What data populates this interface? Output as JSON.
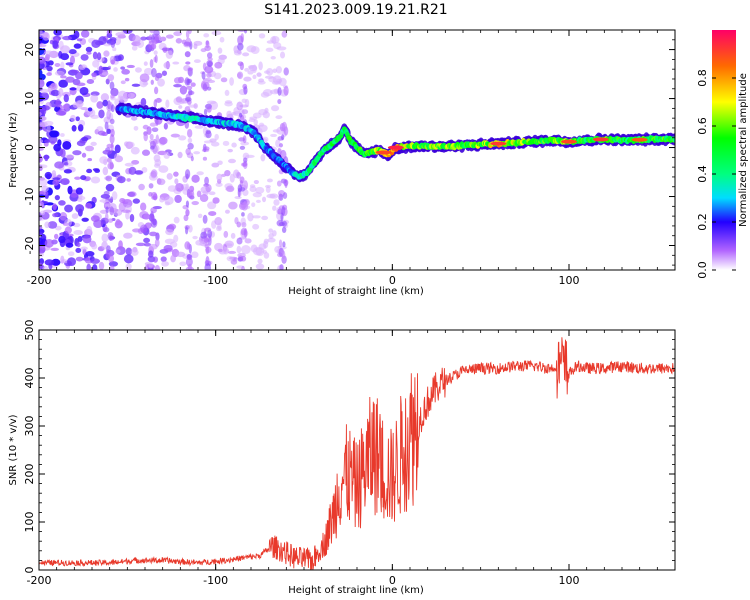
{
  "title": "S141.2023.009.19.21.R21",
  "chart_data": [
    {
      "type": "heatmap",
      "xlabel": "Height of straight line (km)",
      "ylabel": "Frequency (Hz)",
      "xlim": [
        -200,
        160
      ],
      "ylim": [
        -25,
        24
      ],
      "xticks": [
        -200,
        -100,
        0,
        100
      ],
      "xtick_labels": [
        "-200",
        "-100",
        "0",
        "100"
      ],
      "yticks": [
        -20,
        -10,
        0,
        10,
        20
      ],
      "ytick_labels": [
        "-20",
        "-10",
        "0",
        "10",
        "20"
      ],
      "colorbar": {
        "label": "Normalized spectral amplitude",
        "range": [
          0,
          1
        ],
        "ticks": [
          0,
          0.2,
          0.4,
          0.6,
          0.8
        ],
        "tick_labels": [
          "0.0",
          "0.2",
          "0.4",
          "0.6",
          "0.8"
        ]
      },
      "ridge": {
        "x": [
          -155,
          -145,
          -135,
          -125,
          -115,
          -105,
          -95,
          -85,
          -78,
          -72,
          -66,
          -60,
          -56,
          -52,
          -48,
          -44,
          -40,
          -35,
          -30,
          -27,
          -24,
          -20,
          -16,
          -12,
          -8,
          -5,
          -2,
          2,
          10,
          20,
          30,
          40,
          50,
          60,
          70,
          80,
          90,
          100,
          110,
          120,
          130,
          140,
          150,
          160
        ],
        "freq": [
          8,
          7.5,
          7,
          6.5,
          6,
          5.5,
          5,
          4.5,
          3,
          0,
          -2,
          -4,
          -5.5,
          -6,
          -5,
          -3,
          -1,
          0.5,
          2,
          4,
          1.5,
          0,
          -1.5,
          -1,
          -0.5,
          -1,
          -1.5,
          0,
          0.2,
          0.3,
          0.2,
          0.4,
          0.6,
          0.8,
          1,
          1.2,
          1.5,
          1.2,
          1.5,
          1.7,
          1.5,
          1.6,
          1.7,
          1.8
        ],
        "amp": [
          0.25,
          0.3,
          0.28,
          0.3,
          0.35,
          0.32,
          0.3,
          0.3,
          0.3,
          0.28,
          0.25,
          0.25,
          0.3,
          0.35,
          0.4,
          0.45,
          0.45,
          0.5,
          0.5,
          0.45,
          0.55,
          0.5,
          0.5,
          0.55,
          0.6,
          0.7,
          0.8,
          0.95,
          0.6,
          0.55,
          0.6,
          0.55,
          0.6,
          0.7,
          0.65,
          0.5,
          0.55,
          0.6,
          0.5,
          0.55,
          0.5,
          0.5,
          0.55,
          0.5
        ]
      }
    },
    {
      "type": "line",
      "xlabel": "Height of straight line (km)",
      "ylabel": "SNR (10 * v/v)",
      "xlim": [
        -200,
        160
      ],
      "ylim": [
        0,
        500
      ],
      "xticks": [
        -200,
        -100,
        0,
        100
      ],
      "xtick_labels": [
        "-200",
        "-100",
        "0",
        "100"
      ],
      "yticks": [
        0,
        100,
        200,
        300,
        400,
        500
      ],
      "ytick_labels": [
        "0",
        "100",
        "200",
        "300",
        "400",
        "500"
      ],
      "series": [
        {
          "name": "SNR",
          "color": "#e8392b",
          "x": [
            -200,
            -180,
            -160,
            -145,
            -130,
            -110,
            -95,
            -85,
            -75,
            -68,
            -62,
            -55,
            -45,
            -38,
            -33,
            -30,
            -25,
            -20,
            -15,
            -10,
            -5,
            0,
            5,
            10,
            15,
            20,
            25,
            30,
            40,
            50,
            60,
            70,
            80,
            90,
            95,
            100,
            105,
            110,
            120,
            130,
            140,
            150,
            160
          ],
          "values": [
            15,
            15,
            15,
            20,
            20,
            15,
            20,
            25,
            30,
            50,
            40,
            25,
            20,
            60,
            120,
            180,
            200,
            170,
            220,
            250,
            210,
            190,
            240,
            280,
            310,
            350,
            380,
            395,
            415,
            420,
            420,
            425,
            425,
            420,
            430,
            410,
            425,
            420,
            420,
            425,
            420,
            420,
            420
          ]
        }
      ]
    }
  ]
}
